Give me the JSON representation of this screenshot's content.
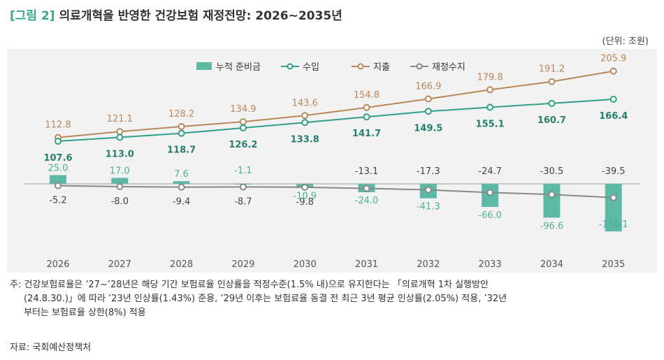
{
  "header": {
    "figure_tag": "[그림 2]",
    "title": "의료개혁을 반영한 건강보험 재정전망: 2026~2035년",
    "unit": "(단위: 조원)"
  },
  "colors": {
    "bar": "#5bb9a5",
    "revenue": "#2f9f87",
    "expense": "#b8875a",
    "balance": "#888888",
    "zero_line": "#9a9a9a",
    "panel_bg": "#f2f2f2"
  },
  "chart_data": {
    "type": "bar",
    "categories": [
      "2026",
      "2027",
      "2028",
      "2029",
      "2030",
      "2031",
      "2032",
      "2033",
      "2034",
      "2035"
    ],
    "series": [
      {
        "name": "누적 준비금",
        "kind": "bar",
        "values": [
          25.0,
          17.0,
          7.6,
          -1.1,
          -10.9,
          -24.0,
          -41.3,
          -66.0,
          -96.6,
          -136.1
        ]
      },
      {
        "name": "수입",
        "kind": "line",
        "values": [
          107.6,
          113.0,
          118.7,
          126.2,
          133.8,
          141.7,
          149.5,
          155.1,
          160.7,
          166.4
        ]
      },
      {
        "name": "지출",
        "kind": "line",
        "values": [
          112.8,
          121.1,
          128.2,
          134.9,
          143.6,
          154.8,
          166.9,
          179.8,
          191.2,
          205.9
        ]
      },
      {
        "name": "재정수지",
        "kind": "line",
        "values": [
          -5.2,
          -8.0,
          -9.4,
          -8.7,
          -9.8,
          -13.1,
          -17.3,
          -24.7,
          -30.5,
          -39.5
        ]
      }
    ],
    "grid": false,
    "legend_position": "top-center"
  },
  "notes": {
    "line1": "주: 건강보험료율은 ’27~’28년은 해당 기간 보험료율 인상률을 적정수준(1.5% 내)으로 유지한다는 「의료개혁 1차 실행방안",
    "line2": "(24.8.30.)」에 따라 ’23년 인상률(1.43%) 준용, ’29년 이후는 보험료율 동결 전 최근 3년 평균 인상률(2.05%) 적용, ’32년",
    "line3": "부터는 보험료율 상한(8%) 적용",
    "source": "자료: 국회예산정책처"
  }
}
